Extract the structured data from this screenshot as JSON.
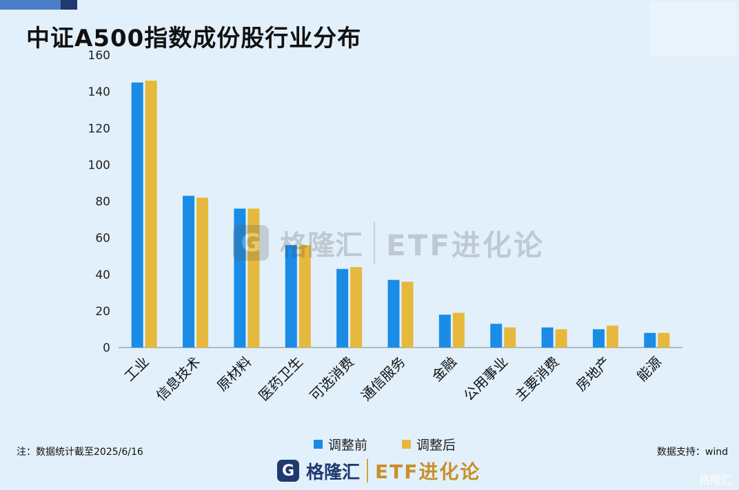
{
  "title": "中证A500指数成份股行业分布",
  "note": "注：数据统计截至2025/6/16",
  "source": "数据支持：wind",
  "footer": {
    "logo_mark": "G",
    "logo_cn": "格隆汇",
    "brand": "ETF进化论"
  },
  "watermark": {
    "mark": "G",
    "cn": "格隆汇",
    "brand": "ETF进化论"
  },
  "corner_watermark": "格隆汇",
  "colors": {
    "before": "#1a8ce6",
    "after": "#e6b93c",
    "axis": "#9aa7b3"
  },
  "chart_data": {
    "type": "bar",
    "title": "中证A500指数成份股行业分布",
    "categories": [
      "工业",
      "信息技术",
      "原材料",
      "医药卫生",
      "可选消费",
      "通信服务",
      "金融",
      "公用事业",
      "主要消费",
      "房地产",
      "能源"
    ],
    "series": [
      {
        "name": "调整前",
        "values": [
          145,
          83,
          76,
          56,
          43,
          37,
          18,
          13,
          11,
          10,
          8
        ]
      },
      {
        "name": "调整后",
        "values": [
          146,
          82,
          76,
          56,
          44,
          36,
          19,
          11,
          10,
          12,
          8
        ]
      }
    ],
    "ylim": [
      0,
      160
    ],
    "yticks": [
      0,
      20,
      40,
      60,
      80,
      100,
      120,
      140,
      160
    ],
    "grid": false,
    "legend_position": "bottom"
  }
}
